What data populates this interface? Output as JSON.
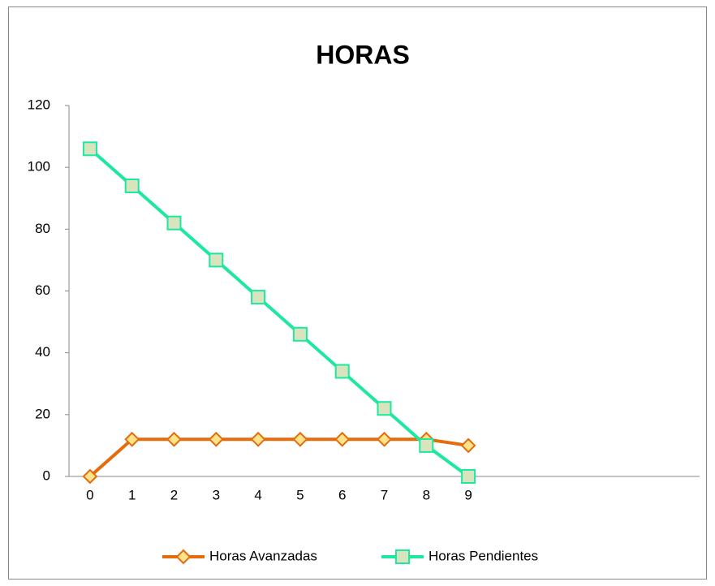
{
  "chart_data": {
    "type": "line",
    "title": "HORAS",
    "categories": [
      "0",
      "1",
      "2",
      "3",
      "4",
      "5",
      "6",
      "7",
      "8",
      "9",
      null,
      null,
      null,
      null,
      null
    ],
    "series": [
      {
        "name": "Horas Avanzadas",
        "color": "#E46C0A",
        "marker": "diamond",
        "marker_fill": "#FFE38A",
        "values": [
          0,
          12,
          12,
          12,
          12,
          12,
          12,
          12,
          12,
          10,
          null,
          null,
          null,
          null,
          null
        ]
      },
      {
        "name": "Horas Pendientes",
        "color": "#1EE8A0",
        "marker": "square",
        "marker_fill": "#D7E4BD",
        "values": [
          106,
          94,
          82,
          70,
          58,
          46,
          34,
          22,
          10,
          0,
          null,
          null,
          null,
          null,
          null
        ]
      }
    ],
    "ylim": [
      0,
      120
    ],
    "yticks": [
      0,
      20,
      40,
      60,
      80,
      100,
      120
    ],
    "grid": false,
    "legend": "bottom"
  }
}
